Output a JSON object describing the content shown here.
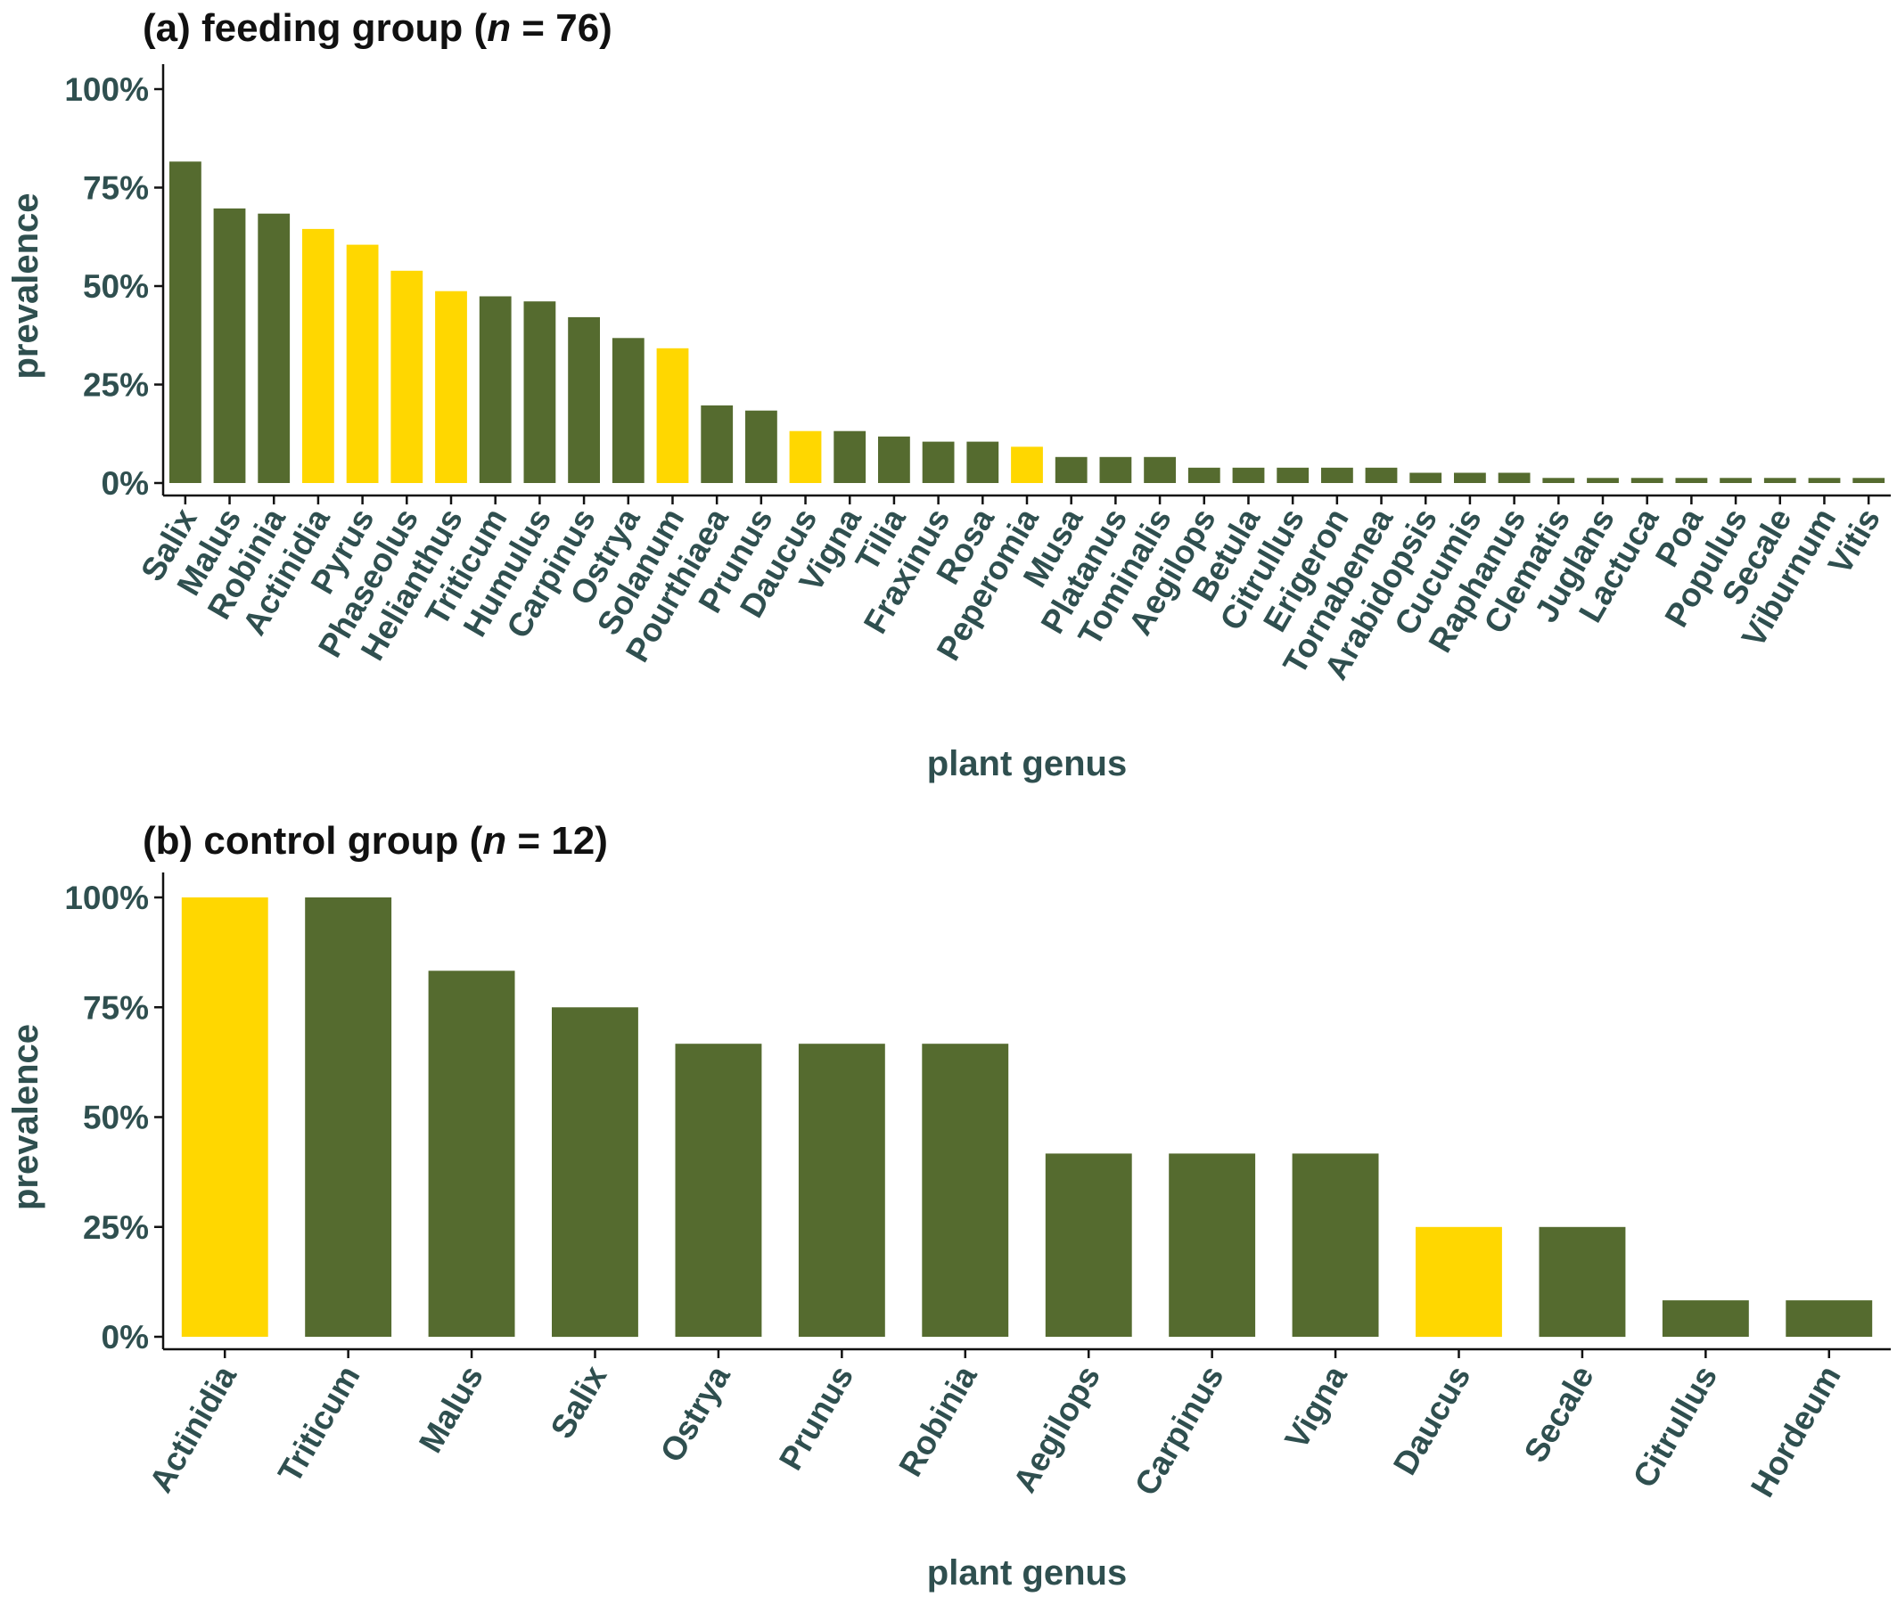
{
  "colors": {
    "green": "#556b2f",
    "gold": "#ffd700",
    "text": "#2f4f4f"
  },
  "chart_data": [
    {
      "type": "bar",
      "panel_label": "(a)",
      "title_main": "feeding group (",
      "title_n": "n",
      "title_rest": " = 76)",
      "xlabel": "plant genus",
      "ylabel": "prevalence",
      "ylim": [
        0,
        1
      ],
      "y_ticks": [
        "0%",
        "25%",
        "50%",
        "75%",
        "100%"
      ],
      "y_tick_values": [
        0,
        0.25,
        0.5,
        0.75,
        1.0
      ],
      "grid": false,
      "categories": [
        "Salix",
        "Malus",
        "Robinia",
        "Actinidia",
        "Pyrus",
        "Phaseolus",
        "Helianthus",
        "Triticum",
        "Humulus",
        "Carpinus",
        "Ostrya",
        "Solanum",
        "Pourthiaea",
        "Prunus",
        "Daucus",
        "Vigna",
        "Tilia",
        "Fraxinus",
        "Rosa",
        "Peperomia",
        "Musa",
        "Platanus",
        "Tominalis",
        "Aegilops",
        "Betula",
        "Citrullus",
        "Erigeron",
        "Tornabenea",
        "Arabidopsis",
        "Cucumis",
        "Raphanus",
        "Clematis",
        "Juglans",
        "Lactuca",
        "Poa",
        "Populus",
        "Secale",
        "Viburnum",
        "Vitis"
      ],
      "values": [
        0.816,
        0.697,
        0.684,
        0.645,
        0.605,
        0.539,
        0.487,
        0.474,
        0.461,
        0.421,
        0.368,
        0.342,
        0.197,
        0.184,
        0.132,
        0.132,
        0.118,
        0.105,
        0.105,
        0.092,
        0.066,
        0.066,
        0.066,
        0.039,
        0.039,
        0.039,
        0.039,
        0.039,
        0.026,
        0.026,
        0.026,
        0.013,
        0.013,
        0.013,
        0.013,
        0.013,
        0.013,
        0.013,
        0.013
      ],
      "colors": [
        "green",
        "green",
        "green",
        "gold",
        "gold",
        "gold",
        "gold",
        "green",
        "green",
        "green",
        "green",
        "gold",
        "green",
        "green",
        "gold",
        "green",
        "green",
        "green",
        "green",
        "gold",
        "green",
        "green",
        "green",
        "green",
        "green",
        "green",
        "green",
        "green",
        "green",
        "green",
        "green",
        "green",
        "green",
        "green",
        "green",
        "green",
        "green",
        "green",
        "green"
      ]
    },
    {
      "type": "bar",
      "panel_label": "(b)",
      "title_main": "control group (",
      "title_n": "n",
      "title_rest": " = 12)",
      "xlabel": "plant genus",
      "ylabel": "prevalence",
      "ylim": [
        0,
        1
      ],
      "y_ticks": [
        "0%",
        "25%",
        "50%",
        "75%",
        "100%"
      ],
      "y_tick_values": [
        0,
        0.25,
        0.5,
        0.75,
        1.0
      ],
      "grid": false,
      "categories": [
        "Actinidia",
        "Triticum",
        "Malus",
        "Salix",
        "Ostrya",
        "Prunus",
        "Robinia",
        "Aegilops",
        "Carpinus",
        "Vigna",
        "Daucus",
        "Secale",
        "Citrullus",
        "Hordeum"
      ],
      "values": [
        1.0,
        1.0,
        0.833,
        0.75,
        0.667,
        0.667,
        0.667,
        0.417,
        0.417,
        0.417,
        0.25,
        0.25,
        0.083,
        0.083
      ],
      "colors": [
        "gold",
        "green",
        "green",
        "green",
        "green",
        "green",
        "green",
        "green",
        "green",
        "green",
        "gold",
        "green",
        "green",
        "green"
      ]
    }
  ]
}
